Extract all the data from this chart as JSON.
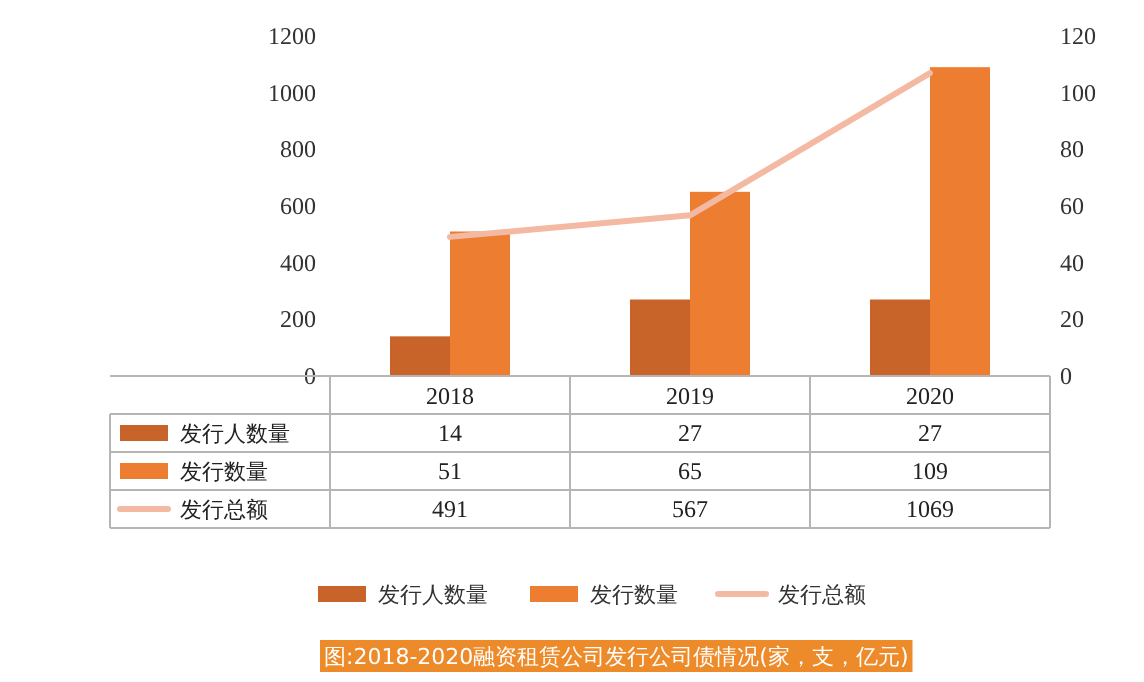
{
  "chart_data": {
    "type": "bar",
    "categories": [
      "2018",
      "2019",
      "2020"
    ],
    "series": [
      {
        "name": "发行人数量",
        "color": "#c8642a",
        "values": [
          14,
          27,
          27
        ],
        "axis": "y2"
      },
      {
        "name": "发行数量",
        "color": "#ed7d31",
        "values": [
          51,
          65,
          109
        ],
        "axis": "y2"
      },
      {
        "name": "发行总额",
        "color": "#f4b9a3",
        "values": [
          491,
          567,
          1069
        ],
        "type": "line",
        "axis": "y"
      }
    ],
    "ylim": [
      0,
      1200
    ],
    "yticks": [
      0,
      200,
      400,
      600,
      800,
      1000,
      1200
    ],
    "y2lim": [
      0,
      120
    ],
    "y2ticks": [
      0,
      20,
      40,
      60,
      80,
      100,
      120
    ],
    "legend": "bottom",
    "data_labels": true,
    "annotations": [
      "图:2018-2020融资租赁公司发行公司债情况(家，支，亿元)"
    ]
  }
}
